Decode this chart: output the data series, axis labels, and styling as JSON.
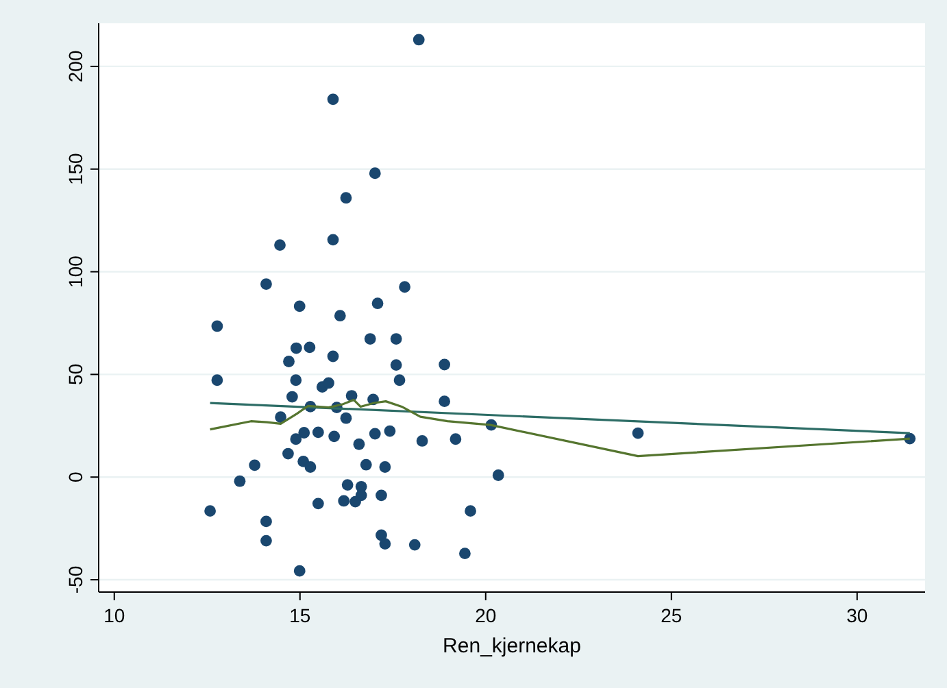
{
  "chart_data": {
    "type": "scatter",
    "xlabel": "Ren_kjernekap",
    "xlim": [
      9.58,
      31.83
    ],
    "xticks": [
      10,
      15,
      20,
      25,
      30
    ],
    "ylim": [
      -56,
      221
    ],
    "yticks": [
      -50,
      0,
      50,
      100,
      150,
      200
    ],
    "grid": "y",
    "series": [
      {
        "marker": "circle",
        "color": "#1a476f",
        "x": [
          18.2,
          15.89,
          17.02,
          16.24,
          14.46,
          15.89,
          14.09,
          17.82,
          14.99,
          17.09,
          16.08,
          12.77,
          16.89,
          17.59,
          14.9,
          15.26,
          15.89,
          14.7,
          17.59,
          18.89,
          12.77,
          14.89,
          17.68,
          15.6,
          15.77,
          14.79,
          16.39,
          16.97,
          18.89,
          15.28,
          15.99,
          14.48,
          16.24,
          20.15,
          15.11,
          15.49,
          14.89,
          15.92,
          17.02,
          17.42,
          18.29,
          19.19,
          16.59,
          14.68,
          15.09,
          15.28,
          13.78,
          16.78,
          17.29,
          13.38,
          16.28,
          16.65,
          17.19,
          16.65,
          16.49,
          16.18,
          15.49,
          12.58,
          19.59,
          14.09,
          17.19,
          17.29,
          14.09,
          18.09,
          19.44,
          14.99,
          20.34,
          24.1,
          31.42
        ],
        "values": [
          213,
          184,
          148,
          136,
          113,
          115.6,
          94,
          92.6,
          83.2,
          84.6,
          78.6,
          73.5,
          67.3,
          67.3,
          62.8,
          63.2,
          58.8,
          56.3,
          54.6,
          54.8,
          47.2,
          47.2,
          47.2,
          43.9,
          45.8,
          39.1,
          39.6,
          37.8,
          36.9,
          34.3,
          33.9,
          29.2,
          28.7,
          25.4,
          21.6,
          21.8,
          18.5,
          19.8,
          21.1,
          22.4,
          17.6,
          18.5,
          16,
          11.4,
          7.6,
          4.9,
          5.8,
          6,
          4.9,
          -2,
          -3.8,
          -4.7,
          -8.9,
          -8.9,
          -12,
          -11.6,
          -12.9,
          -16.5,
          -16.5,
          -21.6,
          -28.3,
          -32.5,
          -31,
          -33,
          -37.2,
          -45.7,
          0.9,
          21.4,
          18.7
        ]
      },
      {
        "type": "line",
        "color": "#2d6d66",
        "x": [
          12.58,
          31.42
        ],
        "values": [
          36.1,
          21.4
        ]
      },
      {
        "type": "line",
        "color": "#55752f",
        "x": [
          12.58,
          13.68,
          14.11,
          14.48,
          14.92,
          15.22,
          15.77,
          16.14,
          16.45,
          16.63,
          17,
          17.31,
          17.74,
          18.24,
          18.97,
          20.13,
          24.1,
          31.42
        ],
        "values": [
          23.2,
          27.2,
          26.7,
          26,
          30.9,
          34.7,
          33.9,
          35.4,
          37.6,
          34.3,
          36.1,
          36.9,
          34.3,
          29.4,
          27.2,
          25.4,
          10.2,
          18.7
        ]
      }
    ]
  }
}
